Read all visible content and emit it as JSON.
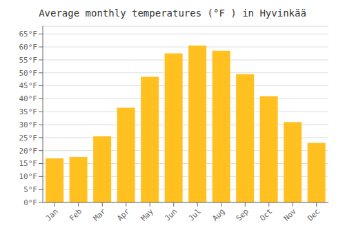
{
  "chart_data": {
    "type": "bar",
    "title": "Average monthly temperatures (°F ) in Hyvinkää",
    "categories": [
      "Jan",
      "Feb",
      "Mar",
      "Apr",
      "May",
      "Jun",
      "Jul",
      "Aug",
      "Sep",
      "Oct",
      "Nov",
      "Dec"
    ],
    "values": [
      17,
      17.5,
      25.5,
      36.5,
      48.5,
      57.5,
      60.5,
      58.5,
      49.5,
      41,
      31,
      23
    ],
    "color": "#FFC020",
    "ylim": [
      0,
      68
    ],
    "yticks": [
      {
        "value": 0,
        "label": "0°F"
      },
      {
        "value": 5,
        "label": "5°F"
      },
      {
        "value": 10,
        "label": "10°F"
      },
      {
        "value": 15,
        "label": "15°F"
      },
      {
        "value": 20,
        "label": "20°F"
      },
      {
        "value": 25,
        "label": "25°F"
      },
      {
        "value": 30,
        "label": "30°F"
      },
      {
        "value": 35,
        "label": "35°F"
      },
      {
        "value": 40,
        "label": "40°F"
      },
      {
        "value": 45,
        "label": "45°F"
      },
      {
        "value": 50,
        "label": "50°F"
      },
      {
        "value": 55,
        "label": "55°F"
      },
      {
        "value": 60,
        "label": "60°F"
      },
      {
        "value": 65,
        "label": "65°F"
      }
    ],
    "grid": true
  }
}
